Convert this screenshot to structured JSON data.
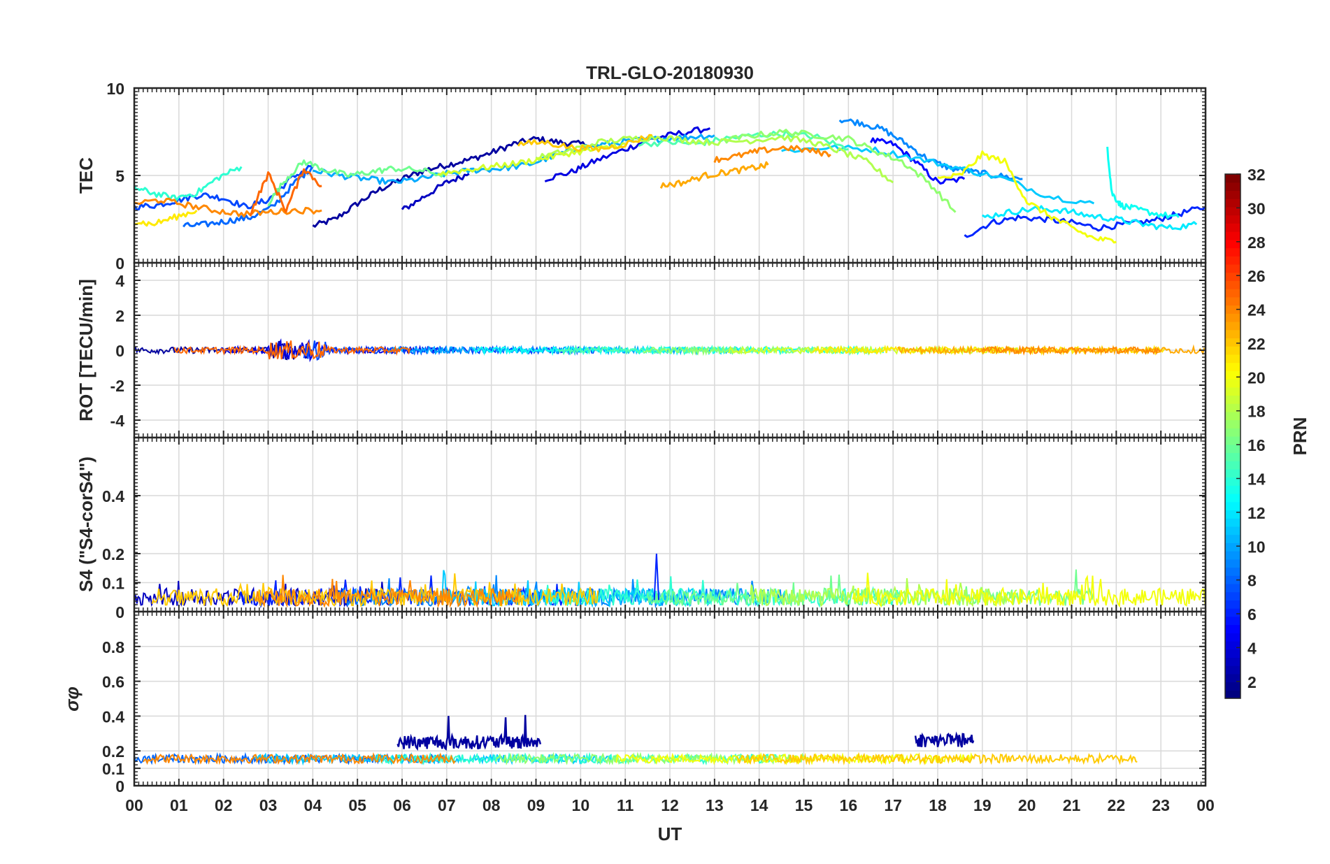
{
  "title": "TRL-GLO-20180930",
  "xlabel": "UT",
  "x_ticks": [
    "00",
    "01",
    "02",
    "03",
    "04",
    "05",
    "06",
    "07",
    "08",
    "09",
    "10",
    "11",
    "12",
    "13",
    "14",
    "15",
    "16",
    "17",
    "18",
    "19",
    "20",
    "21",
    "22",
    "23",
    "00"
  ],
  "colorbar": {
    "label": "PRN",
    "ticks": [
      2,
      4,
      6,
      8,
      10,
      12,
      14,
      16,
      18,
      20,
      22,
      24,
      26,
      28,
      30,
      32
    ],
    "range": [
      1,
      32
    ],
    "colormap": "jet"
  },
  "chart_data": [
    {
      "type": "line",
      "name": "tec-panel",
      "ylabel": "TEC",
      "ylim": [
        0,
        10
      ],
      "yticks": [
        0,
        5,
        10
      ],
      "xlim": [
        0,
        24
      ],
      "series": [
        {
          "name": "PRN 2",
          "prn": 2,
          "x": [
            4.0,
            4.5,
            5.0,
            5.5,
            6.0,
            6.5,
            7.0,
            7.5,
            8.0,
            8.5,
            9.0,
            9.5,
            10.0,
            10.5
          ],
          "y": [
            2.1,
            2.5,
            3.4,
            4.2,
            4.8,
            5.3,
            5.6,
            5.9,
            6.3,
            6.8,
            7.1,
            6.9,
            6.8,
            6.6
          ]
        },
        {
          "name": "PRN 3",
          "prn": 3,
          "x": [
            6.0,
            6.5,
            7.0,
            7.5
          ],
          "y": [
            3.0,
            3.8,
            4.6,
            5.1
          ]
        },
        {
          "name": "PRN 4",
          "prn": 4,
          "x": [
            9.2,
            9.8,
            10.3,
            11.0,
            11.6,
            12.2,
            12.9
          ],
          "y": [
            4.8,
            5.2,
            5.8,
            6.5,
            7.1,
            7.4,
            7.7
          ]
        },
        {
          "name": "PRN 5",
          "prn": 5,
          "x": [
            16.5,
            17.0,
            17.5,
            18.0,
            18.6
          ],
          "y": [
            7.0,
            6.8,
            5.8,
            4.6,
            4.8
          ]
        },
        {
          "name": "PRN 6",
          "prn": 6,
          "x": [
            18.6,
            19.2,
            19.8,
            20.4,
            21.0,
            21.6,
            22.2,
            22.8,
            23.4,
            24.0
          ],
          "y": [
            1.5,
            2.3,
            2.6,
            2.5,
            2.3,
            2.0,
            2.2,
            2.4,
            2.8,
            3.2
          ]
        },
        {
          "name": "PRN 7",
          "prn": 7,
          "x": [
            0,
            0.5,
            1.0,
            1.5,
            2.0,
            2.5,
            3.0,
            3.5,
            4.0
          ],
          "y": [
            3.2,
            3.3,
            3.6,
            3.9,
            3.7,
            3.2,
            3.6,
            4.8,
            5.6
          ]
        },
        {
          "name": "PRN 8",
          "prn": 8,
          "x": [
            1.1,
            1.6,
            2.1,
            2.6,
            3.1,
            3.6,
            4.0
          ],
          "y": [
            2.1,
            2.2,
            2.4,
            2.6,
            3.2,
            4.6,
            5.5
          ]
        },
        {
          "name": "PRN 9",
          "prn": 9,
          "x": [
            15.8,
            16.3,
            16.8,
            17.3,
            17.8,
            18.3,
            18.8,
            19.3,
            19.9
          ],
          "y": [
            8.2,
            8.0,
            7.6,
            6.8,
            5.9,
            5.4,
            5.2,
            5.0,
            4.8
          ]
        },
        {
          "name": "PRN 10",
          "prn": 10,
          "x": [
            4.0,
            4.6,
            5.2,
            5.8,
            6.4,
            7.0,
            7.6,
            8.2,
            8.8,
            9.4,
            10.0,
            10.6,
            11.2,
            11.8,
            12.4,
            13.0
          ],
          "y": [
            5.3,
            5.0,
            4.8,
            4.6,
            4.8,
            5.1,
            5.3,
            5.4,
            5.6,
            6.1,
            6.6,
            6.8,
            7.0,
            7.1,
            7.2,
            7.3
          ]
        },
        {
          "name": "PRN 11",
          "prn": 11,
          "x": [
            14.5,
            15.5,
            16.5,
            17.5,
            18.5,
            19.5,
            20.5,
            21.5
          ],
          "y": [
            6.4,
            6.6,
            6.5,
            6.0,
            5.4,
            4.8,
            3.8,
            3.4
          ]
        },
        {
          "name": "PRN 12",
          "prn": 12,
          "x": [
            19.0,
            19.6,
            20.2,
            20.8,
            21.4,
            22.0,
            22.6,
            23.2,
            23.8
          ],
          "y": [
            2.6,
            2.9,
            3.1,
            3.0,
            2.7,
            2.5,
            2.2,
            2.0,
            2.2
          ]
        },
        {
          "name": "PRN 13",
          "prn": 13,
          "x": [
            21.8,
            21.9,
            22.1,
            22.4,
            22.9,
            23.4
          ],
          "y": [
            6.6,
            4.0,
            3.3,
            3.1,
            2.8,
            2.6
          ]
        },
        {
          "name": "PRN 14",
          "prn": 14,
          "x": [
            0,
            0.4,
            0.9,
            1.4,
            1.9,
            2.4
          ],
          "y": [
            4.3,
            4.0,
            3.7,
            4.0,
            4.9,
            5.5
          ]
        },
        {
          "name": "PRN 15",
          "prn": 15,
          "x": [
            11.3,
            12.0,
            12.6,
            13.2,
            13.9,
            14.6,
            15.3,
            16.0
          ],
          "y": [
            6.8,
            6.9,
            6.8,
            7.1,
            7.3,
            7.4,
            7.2,
            6.5
          ]
        },
        {
          "name": "PRN 16",
          "prn": 16,
          "x": [
            3.0,
            3.4,
            3.8,
            4.3,
            4.8,
            5.3,
            5.8,
            6.4,
            7.0
          ],
          "y": [
            3.4,
            4.8,
            5.8,
            5.3,
            5.0,
            5.2,
            5.4,
            5.3,
            5.0
          ]
        },
        {
          "name": "PRN 17",
          "prn": 17,
          "x": [
            13.2,
            13.9,
            14.6,
            15.3,
            16.0,
            16.6,
            17.2,
            17.8,
            18.4
          ],
          "y": [
            7.0,
            7.3,
            7.5,
            7.3,
            7.1,
            6.4,
            5.8,
            4.6,
            2.9
          ]
        },
        {
          "name": "PRN 18",
          "prn": 18,
          "x": [
            9.0,
            9.7,
            10.4,
            11.1,
            11.8,
            12.4,
            13.0,
            13.8,
            14.5,
            15.2,
            15.8,
            16.4,
            17.0
          ],
          "y": [
            6.0,
            6.4,
            6.9,
            7.1,
            7.2,
            7.0,
            6.9,
            7.0,
            7.2,
            6.9,
            6.4,
            5.8,
            4.6
          ]
        },
        {
          "name": "PRN 19",
          "prn": 19,
          "x": [
            6.8,
            7.4,
            8.0,
            8.6,
            9.2,
            9.8,
            10.4,
            11.0
          ],
          "y": [
            5.1,
            5.3,
            5.5,
            5.7,
            6.0,
            6.3,
            6.5,
            6.8
          ]
        },
        {
          "name": "PRN 20",
          "prn": 20,
          "x": [
            18.0,
            18.5,
            19.0,
            19.5,
            20.0,
            20.5,
            21.0,
            21.5,
            22.0
          ],
          "y": [
            4.8,
            5.0,
            6.2,
            5.8,
            3.5,
            2.7,
            2.0,
            1.4,
            1.2
          ]
        },
        {
          "name": "PRN 21",
          "prn": 21,
          "x": [
            0,
            0.4,
            0.9,
            1.4
          ],
          "y": [
            2.4,
            2.2,
            2.6,
            3.0
          ]
        },
        {
          "name": "PRN 22",
          "prn": 22,
          "x": [
            8.6,
            9.2,
            9.8,
            10.4,
            11.0,
            11.6
          ],
          "y": [
            6.8,
            6.9,
            6.6,
            6.5,
            6.8,
            7.3
          ]
        },
        {
          "name": "PRN 23",
          "prn": 23,
          "x": [
            11.8,
            12.3,
            12.8,
            13.3,
            13.8,
            14.2
          ],
          "y": [
            4.4,
            4.6,
            5.0,
            5.2,
            5.4,
            5.6
          ]
        },
        {
          "name": "PRN 24",
          "prn": 24,
          "x": [
            0,
            0.6,
            1.2,
            1.8,
            2.4,
            3.0,
            3.6,
            4.2
          ],
          "y": [
            3.4,
            3.6,
            3.3,
            3.0,
            2.8,
            2.9,
            3.0,
            3.0
          ]
        },
        {
          "name": "PRN 24b",
          "prn": 24,
          "x": [
            13.0,
            13.5,
            14.0,
            14.6,
            15.2,
            15.6
          ],
          "y": [
            5.9,
            6.1,
            6.4,
            6.6,
            6.4,
            6.2
          ]
        },
        {
          "name": "PRN 25",
          "prn": 25,
          "x": [
            2.6,
            3.0,
            3.4,
            3.8,
            4.2
          ],
          "y": [
            2.8,
            5.1,
            3.0,
            5.4,
            4.4
          ]
        }
      ]
    },
    {
      "type": "line",
      "name": "rot-panel",
      "ylabel": "ROT [TECU/min]",
      "ylim": [
        -5,
        5
      ],
      "yticks": [
        -4,
        -2,
        0,
        2,
        4
      ],
      "xlim": [
        0,
        24
      ],
      "description_values": "all series fluctuate near 0 within about ±0.7"
    },
    {
      "type": "line",
      "name": "s4-panel",
      "ylabel": "S4 (\"S4-corS4\")",
      "ylim": [
        0,
        0.6
      ],
      "yticks": [
        0,
        0.1,
        0.2,
        0.4
      ],
      "xlim": [
        0,
        24
      ],
      "peak": {
        "x": 11.7,
        "y": 0.2
      }
    },
    {
      "type": "line",
      "name": "sigma-phi-panel",
      "ylabel": "σφ",
      "ylim": [
        0,
        1
      ],
      "yticks": [
        0,
        0.1,
        0.2,
        0.4,
        0.6,
        0.8
      ],
      "xlim": [
        0,
        24
      ],
      "enhanced_intervals": [
        {
          "x_start": 5.9,
          "x_end": 9.1,
          "level": 0.25,
          "peak": 0.42
        },
        {
          "x_start": 17.5,
          "x_end": 18.8,
          "level": 0.26,
          "peak": 0.31
        }
      ]
    }
  ]
}
